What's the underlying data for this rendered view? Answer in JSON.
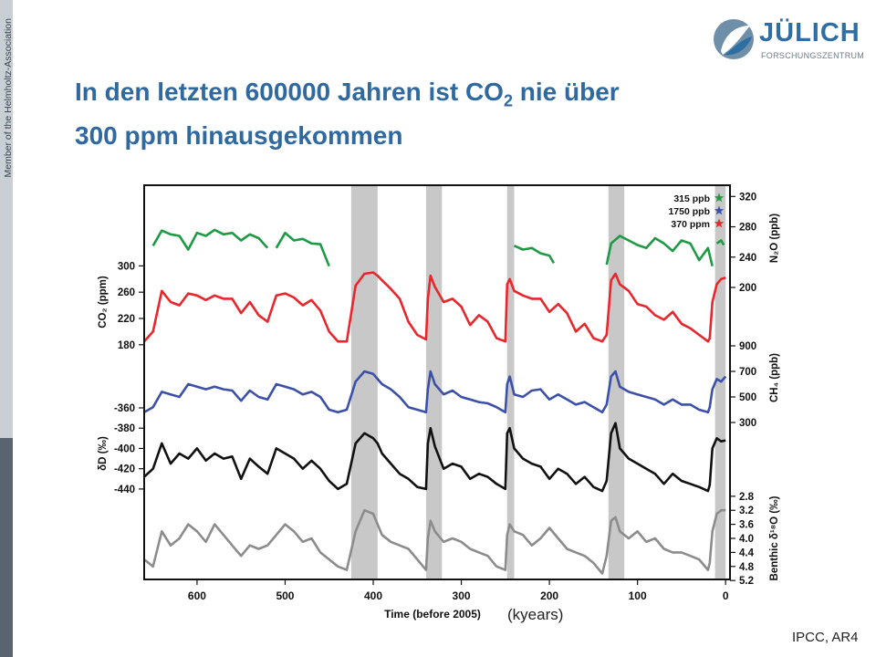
{
  "sidebar": {
    "text": "Member of the Helmholtz-Association"
  },
  "logo": {
    "name": "JÜLICH",
    "sub": "FORSCHUNGSZENTRUM"
  },
  "slide": {
    "title_line1_pre": "In den letzten 600000 Jahren ist CO",
    "title_sub": "2",
    "title_line1_post": " nie über",
    "title_line2": "300 ppm hinausgekommen",
    "kyears": "(kyears)",
    "source": "IPCC, AR4"
  },
  "colors": {
    "green": "#1e9a45",
    "red": "#e8262b",
    "blue": "#3c50a8",
    "black": "#111111",
    "gray": "#8c8c8c",
    "band": "#c8c8c8",
    "title": "#2f69a0"
  },
  "chart_data": {
    "type": "line",
    "xlabel": "Time (before 2005)",
    "xlim": [
      660,
      -5
    ],
    "xticks": [
      600,
      500,
      400,
      300,
      200,
      100,
      0
    ],
    "interglacial_bands": [
      [
        425,
        395
      ],
      [
        340,
        322
      ],
      [
        248,
        240
      ],
      [
        133,
        115
      ],
      [
        12,
        0
      ]
    ],
    "legend": [
      {
        "label": "315 ppb",
        "color": "#1e9a45"
      },
      {
        "label": "1750 ppb",
        "color": "#3c50a8"
      },
      {
        "label": "370 ppm",
        "color": "#e8262b"
      }
    ],
    "series": [
      {
        "name": "N₂O",
        "axis_label": "N₂O (ppb)",
        "axis": "right",
        "color": "#1e9a45",
        "ticks": [
          "320",
          "280",
          "240",
          "200"
        ],
        "x": [
          650,
          640,
          630,
          620,
          610,
          600,
          590,
          580,
          570,
          560,
          550,
          540,
          530,
          520,
          null,
          510,
          500,
          490,
          480,
          470,
          460,
          450,
          null,
          240,
          230,
          220,
          210,
          200,
          195,
          null,
          135,
          130,
          120,
          110,
          100,
          90,
          80,
          70,
          60,
          50,
          40,
          30,
          20,
          15,
          null,
          10,
          5,
          2
        ],
        "y": [
          255,
          275,
          270,
          268,
          250,
          272,
          268,
          276,
          270,
          272,
          262,
          270,
          265,
          252,
          null,
          252,
          272,
          262,
          264,
          258,
          257,
          228,
          null,
          255,
          250,
          252,
          245,
          242,
          232,
          null,
          230,
          258,
          268,
          262,
          256,
          252,
          265,
          258,
          248,
          262,
          258,
          236,
          252,
          228,
          null,
          258,
          262,
          256
        ]
      },
      {
        "name": "CO₂",
        "axis_label": "CO₂ (ppm)",
        "axis": "left",
        "color": "#e8262b",
        "ticks": [
          "300",
          "260",
          "220",
          "180"
        ],
        "x": [
          660,
          650,
          640,
          630,
          620,
          610,
          600,
          590,
          580,
          570,
          560,
          550,
          540,
          530,
          520,
          510,
          500,
          490,
          480,
          470,
          460,
          450,
          440,
          430,
          420,
          410,
          400,
          395,
          390,
          380,
          370,
          360,
          350,
          340,
          338,
          335,
          330,
          320,
          310,
          300,
          290,
          280,
          270,
          260,
          250,
          248,
          245,
          240,
          230,
          220,
          210,
          200,
          190,
          180,
          170,
          160,
          150,
          140,
          135,
          130,
          125,
          120,
          110,
          100,
          90,
          80,
          70,
          60,
          50,
          40,
          30,
          20,
          18,
          15,
          10,
          5,
          0
        ],
        "y": [
          185,
          200,
          262,
          245,
          240,
          258,
          255,
          248,
          255,
          250,
          250,
          228,
          245,
          225,
          215,
          255,
          258,
          252,
          240,
          248,
          232,
          200,
          185,
          185,
          270,
          288,
          290,
          285,
          278,
          265,
          250,
          215,
          195,
          188,
          250,
          285,
          268,
          245,
          250,
          238,
          210,
          225,
          215,
          190,
          185,
          272,
          280,
          262,
          255,
          250,
          250,
          230,
          242,
          228,
          200,
          212,
          190,
          185,
          195,
          278,
          288,
          272,
          262,
          242,
          238,
          225,
          218,
          230,
          212,
          205,
          195,
          185,
          190,
          245,
          272,
          280,
          282
        ]
      },
      {
        "name": "CH₄",
        "axis_label": "CH₄ (ppb)",
        "axis": "right",
        "color": "#3c50a8",
        "ticks": [
          "900",
          "700",
          "500",
          "300"
        ],
        "x": [
          660,
          650,
          640,
          630,
          620,
          610,
          600,
          590,
          580,
          570,
          560,
          550,
          540,
          530,
          520,
          510,
          500,
          490,
          480,
          470,
          460,
          450,
          440,
          430,
          420,
          410,
          400,
          395,
          390,
          380,
          370,
          360,
          350,
          340,
          338,
          335,
          330,
          320,
          310,
          300,
          290,
          280,
          270,
          260,
          250,
          248,
          245,
          240,
          230,
          220,
          210,
          200,
          190,
          180,
          170,
          160,
          150,
          140,
          135,
          130,
          125,
          120,
          110,
          100,
          90,
          80,
          70,
          60,
          50,
          40,
          30,
          20,
          18,
          15,
          10,
          5,
          0
        ],
        "y": [
          380,
          420,
          540,
          520,
          500,
          600,
          580,
          560,
          580,
          560,
          550,
          470,
          550,
          500,
          480,
          600,
          580,
          560,
          520,
          540,
          500,
          400,
          380,
          400,
          620,
          700,
          680,
          640,
          600,
          560,
          500,
          420,
          400,
          380,
          560,
          700,
          600,
          520,
          550,
          500,
          480,
          460,
          450,
          420,
          380,
          600,
          660,
          520,
          500,
          550,
          560,
          480,
          520,
          480,
          440,
          460,
          420,
          380,
          440,
          660,
          700,
          580,
          540,
          520,
          500,
          480,
          440,
          480,
          440,
          440,
          400,
          380,
          420,
          560,
          640,
          620,
          660
        ]
      },
      {
        "name": "δD",
        "axis_label": "δD (‰)",
        "axis": "left",
        "color": "#111111",
        "ticks": [
          "-360",
          "-380",
          "-400",
          "-420",
          "-440"
        ],
        "x": [
          660,
          650,
          640,
          630,
          620,
          610,
          600,
          590,
          580,
          570,
          560,
          550,
          540,
          530,
          520,
          510,
          500,
          490,
          480,
          470,
          460,
          450,
          440,
          430,
          420,
          410,
          400,
          395,
          390,
          380,
          370,
          360,
          350,
          340,
          338,
          335,
          330,
          320,
          310,
          300,
          290,
          280,
          270,
          260,
          250,
          248,
          245,
          240,
          230,
          220,
          210,
          200,
          190,
          180,
          170,
          160,
          150,
          140,
          135,
          130,
          125,
          120,
          110,
          100,
          90,
          80,
          70,
          60,
          50,
          40,
          30,
          20,
          18,
          15,
          10,
          5,
          0
        ],
        "y": [
          -428,
          -420,
          -395,
          -415,
          -405,
          -410,
          -400,
          -412,
          -405,
          -410,
          -408,
          -430,
          -410,
          -418,
          -425,
          -400,
          -405,
          -410,
          -420,
          -412,
          -420,
          -432,
          -440,
          -435,
          -395,
          -385,
          -390,
          -395,
          -405,
          -415,
          -425,
          -430,
          -438,
          -440,
          -395,
          -380,
          -398,
          -420,
          -415,
          -418,
          -430,
          -425,
          -428,
          -435,
          -440,
          -385,
          -380,
          -400,
          -410,
          -415,
          -418,
          -430,
          -420,
          -425,
          -435,
          -428,
          -438,
          -442,
          -432,
          -385,
          -375,
          -400,
          -410,
          -415,
          -420,
          -425,
          -435,
          -425,
          -432,
          -435,
          -438,
          -442,
          -436,
          -400,
          -390,
          -393,
          -392
        ]
      },
      {
        "name": "Benthic δ¹⁸O",
        "axis_label": "Benthic δ¹⁸O (‰)",
        "axis": "right",
        "color": "#8c8c8c",
        "ticks": [
          "2.8",
          "3.2",
          "3.6",
          "4.0",
          "4.4",
          "4.8",
          "5.2"
        ],
        "x": [
          660,
          650,
          640,
          630,
          620,
          610,
          600,
          590,
          580,
          570,
          560,
          550,
          540,
          530,
          520,
          510,
          500,
          490,
          480,
          470,
          460,
          450,
          440,
          430,
          420,
          410,
          400,
          395,
          390,
          380,
          370,
          360,
          350,
          340,
          338,
          335,
          330,
          320,
          310,
          300,
          290,
          280,
          270,
          260,
          250,
          248,
          245,
          240,
          230,
          220,
          210,
          200,
          190,
          180,
          170,
          160,
          150,
          140,
          135,
          130,
          125,
          120,
          110,
          100,
          90,
          80,
          70,
          60,
          50,
          40,
          30,
          20,
          18,
          15,
          10,
          5,
          0
        ],
        "y": [
          4.6,
          4.8,
          3.8,
          4.2,
          4.0,
          3.6,
          3.8,
          4.1,
          3.6,
          3.9,
          4.2,
          4.5,
          4.2,
          4.3,
          4.2,
          3.9,
          3.6,
          3.8,
          4.1,
          4.0,
          4.4,
          4.6,
          4.8,
          4.9,
          3.8,
          3.2,
          3.3,
          3.6,
          3.9,
          4.1,
          4.2,
          4.3,
          4.6,
          4.9,
          4.0,
          3.5,
          3.8,
          4.1,
          4.0,
          4.1,
          4.3,
          4.4,
          4.5,
          4.8,
          4.9,
          3.9,
          3.6,
          3.8,
          3.9,
          4.2,
          4.0,
          3.7,
          4.0,
          4.3,
          4.4,
          4.5,
          4.7,
          5.0,
          4.5,
          3.5,
          3.4,
          3.8,
          4.0,
          3.8,
          4.1,
          4.0,
          4.3,
          4.4,
          4.4,
          4.5,
          4.6,
          4.9,
          4.7,
          3.8,
          3.3,
          3.2,
          3.2
        ]
      }
    ]
  }
}
